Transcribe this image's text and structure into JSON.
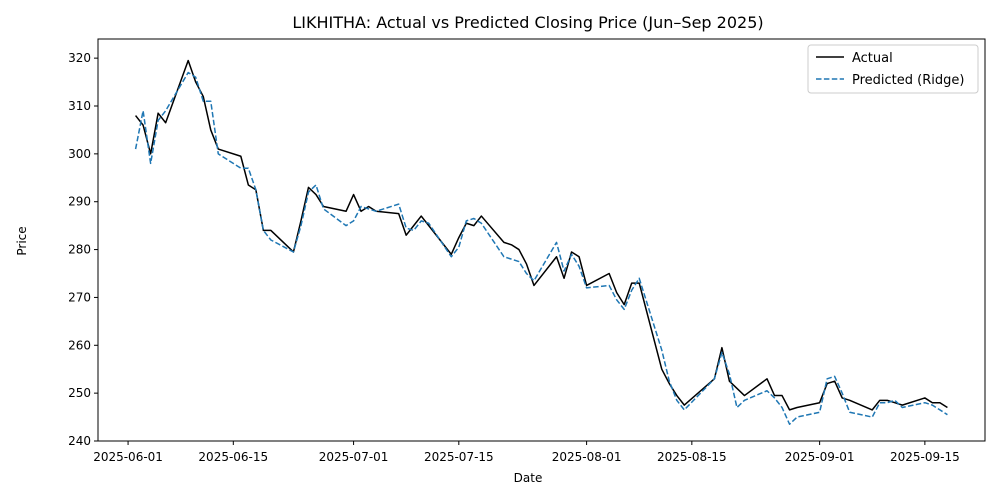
{
  "chart_data": {
    "type": "line",
    "title": "LIKHITHA: Actual vs Predicted Closing Price (Jun–Sep 2025)",
    "xlabel": "Date",
    "ylabel": "Price",
    "xlim": [
      "2025-05-28",
      "2025-09-23"
    ],
    "ylim": [
      240,
      324
    ],
    "x_ticks": [
      "2025-06-01",
      "2025-06-15",
      "2025-07-01",
      "2025-07-15",
      "2025-08-01",
      "2025-08-15",
      "2025-09-01",
      "2025-09-15"
    ],
    "y_ticks": [
      240,
      250,
      260,
      270,
      280,
      290,
      300,
      310,
      320
    ],
    "grid": false,
    "legend_position": "top-right",
    "series": [
      {
        "name": "Actual",
        "color": "#000000",
        "style": "solid",
        "points": [
          [
            "2025-06-02",
            308.0
          ],
          [
            "2025-06-03",
            306.0
          ],
          [
            "2025-06-04",
            300.0
          ],
          [
            "2025-06-05",
            308.5
          ],
          [
            "2025-06-06",
            306.5
          ],
          [
            "2025-06-09",
            319.5
          ],
          [
            "2025-06-10",
            315.0
          ],
          [
            "2025-06-11",
            312.0
          ],
          [
            "2025-06-12",
            305.0
          ],
          [
            "2025-06-13",
            301.0
          ],
          [
            "2025-06-16",
            299.5
          ],
          [
            "2025-06-17",
            293.5
          ],
          [
            "2025-06-18",
            292.5
          ],
          [
            "2025-06-19",
            284.0
          ],
          [
            "2025-06-20",
            284.0
          ],
          [
            "2025-06-23",
            279.5
          ],
          [
            "2025-06-24",
            286.0
          ],
          [
            "2025-06-25",
            293.0
          ],
          [
            "2025-06-26",
            291.5
          ],
          [
            "2025-06-27",
            289.0
          ],
          [
            "2025-06-30",
            288.0
          ],
          [
            "2025-07-01",
            291.5
          ],
          [
            "2025-07-02",
            288.0
          ],
          [
            "2025-07-03",
            289.0
          ],
          [
            "2025-07-04",
            288.0
          ],
          [
            "2025-07-07",
            287.5
          ],
          [
            "2025-07-08",
            283.0
          ],
          [
            "2025-07-09",
            285.0
          ],
          [
            "2025-07-10",
            287.0
          ],
          [
            "2025-07-11",
            285.0
          ],
          [
            "2025-07-14",
            279.0
          ],
          [
            "2025-07-15",
            282.5
          ],
          [
            "2025-07-16",
            285.5
          ],
          [
            "2025-07-17",
            285.0
          ],
          [
            "2025-07-18",
            287.0
          ],
          [
            "2025-07-21",
            281.5
          ],
          [
            "2025-07-22",
            281.0
          ],
          [
            "2025-07-23",
            280.0
          ],
          [
            "2025-07-24",
            277.0
          ],
          [
            "2025-07-25",
            272.5
          ],
          [
            "2025-07-28",
            278.5
          ],
          [
            "2025-07-29",
            274.0
          ],
          [
            "2025-07-30",
            279.5
          ],
          [
            "2025-07-31",
            278.5
          ],
          [
            "2025-08-01",
            272.5
          ],
          [
            "2025-08-04",
            275.0
          ],
          [
            "2025-08-05",
            271.0
          ],
          [
            "2025-08-06",
            268.5
          ],
          [
            "2025-08-07",
            273.0
          ],
          [
            "2025-08-08",
            273.0
          ],
          [
            "2025-08-11",
            255.0
          ],
          [
            "2025-08-12",
            252.0
          ],
          [
            "2025-08-13",
            249.5
          ],
          [
            "2025-08-14",
            247.5
          ],
          [
            "2025-08-18",
            253.0
          ],
          [
            "2025-08-19",
            259.5
          ],
          [
            "2025-08-20",
            252.5
          ],
          [
            "2025-08-22",
            249.5
          ],
          [
            "2025-08-25",
            253.0
          ],
          [
            "2025-08-26",
            249.5
          ],
          [
            "2025-08-27",
            249.5
          ],
          [
            "2025-08-28",
            246.5
          ],
          [
            "2025-08-29",
            247.0
          ],
          [
            "2025-09-01",
            248.0
          ],
          [
            "2025-09-02",
            252.0
          ],
          [
            "2025-09-03",
            252.5
          ],
          [
            "2025-09-04",
            249.0
          ],
          [
            "2025-09-05",
            248.5
          ],
          [
            "2025-09-08",
            246.5
          ],
          [
            "2025-09-09",
            248.5
          ],
          [
            "2025-09-10",
            248.5
          ],
          [
            "2025-09-11",
            248.0
          ],
          [
            "2025-09-12",
            247.5
          ],
          [
            "2025-09-15",
            249.0
          ],
          [
            "2025-09-16",
            248.0
          ],
          [
            "2025-09-17",
            248.0
          ],
          [
            "2025-09-18",
            247.0
          ]
        ]
      },
      {
        "name": "Predicted (Ridge)",
        "color": "#1f77b4",
        "style": "dashed",
        "points": [
          [
            "2025-06-02",
            301.0
          ],
          [
            "2025-06-03",
            309.0
          ],
          [
            "2025-06-04",
            298.0
          ],
          [
            "2025-06-05",
            307.0
          ],
          [
            "2025-06-06",
            309.0
          ],
          [
            "2025-06-09",
            317.0
          ],
          [
            "2025-06-10",
            316.0
          ],
          [
            "2025-06-11",
            311.0
          ],
          [
            "2025-06-12",
            311.0
          ],
          [
            "2025-06-13",
            300.0
          ],
          [
            "2025-06-16",
            297.0
          ],
          [
            "2025-06-17",
            297.0
          ],
          [
            "2025-06-18",
            292.5
          ],
          [
            "2025-06-19",
            284.0
          ],
          [
            "2025-06-20",
            282.0
          ],
          [
            "2025-06-23",
            279.5
          ],
          [
            "2025-06-24",
            285.0
          ],
          [
            "2025-06-25",
            292.0
          ],
          [
            "2025-06-26",
            293.5
          ],
          [
            "2025-06-27",
            288.5
          ],
          [
            "2025-06-30",
            285.0
          ],
          [
            "2025-07-01",
            286.0
          ],
          [
            "2025-07-02",
            289.0
          ],
          [
            "2025-07-03",
            288.5
          ],
          [
            "2025-07-04",
            288.0
          ],
          [
            "2025-07-07",
            289.5
          ],
          [
            "2025-07-08",
            284.5
          ],
          [
            "2025-07-09",
            284.0
          ],
          [
            "2025-07-10",
            286.0
          ],
          [
            "2025-07-11",
            285.5
          ],
          [
            "2025-07-14",
            278.5
          ],
          [
            "2025-07-15",
            280.5
          ],
          [
            "2025-07-16",
            286.0
          ],
          [
            "2025-07-17",
            286.5
          ],
          [
            "2025-07-18",
            285.5
          ],
          [
            "2025-07-21",
            278.5
          ],
          [
            "2025-07-22",
            278.0
          ],
          [
            "2025-07-23",
            277.5
          ],
          [
            "2025-07-24",
            275.0
          ],
          [
            "2025-07-25",
            273.5
          ],
          [
            "2025-07-28",
            281.5
          ],
          [
            "2025-07-29",
            275.5
          ],
          [
            "2025-07-30",
            279.0
          ],
          [
            "2025-07-31",
            276.5
          ],
          [
            "2025-08-01",
            272.0
          ],
          [
            "2025-08-04",
            272.5
          ],
          [
            "2025-08-05",
            269.5
          ],
          [
            "2025-08-06",
            267.5
          ],
          [
            "2025-08-07",
            271.5
          ],
          [
            "2025-08-08",
            274.0
          ],
          [
            "2025-08-11",
            259.0
          ],
          [
            "2025-08-12",
            252.5
          ],
          [
            "2025-08-13",
            248.5
          ],
          [
            "2025-08-14",
            246.5
          ],
          [
            "2025-08-18",
            253.0
          ],
          [
            "2025-08-19",
            258.5
          ],
          [
            "2025-08-20",
            254.0
          ],
          [
            "2025-08-21",
            247.0
          ],
          [
            "2025-08-22",
            248.5
          ],
          [
            "2025-08-25",
            250.5
          ],
          [
            "2025-08-26",
            249.0
          ],
          [
            "2025-08-27",
            247.0
          ],
          [
            "2025-08-28",
            243.5
          ],
          [
            "2025-08-29",
            245.0
          ],
          [
            "2025-09-01",
            246.0
          ],
          [
            "2025-09-02",
            253.0
          ],
          [
            "2025-09-03",
            253.5
          ],
          [
            "2025-09-04",
            250.0
          ],
          [
            "2025-09-05",
            246.0
          ],
          [
            "2025-09-08",
            245.0
          ],
          [
            "2025-09-09",
            248.0
          ],
          [
            "2025-09-10",
            248.0
          ],
          [
            "2025-09-11",
            248.5
          ],
          [
            "2025-09-12",
            247.0
          ],
          [
            "2025-09-15",
            248.0
          ],
          [
            "2025-09-16",
            247.5
          ],
          [
            "2025-09-17",
            246.5
          ],
          [
            "2025-09-18",
            245.5
          ]
        ]
      }
    ]
  }
}
